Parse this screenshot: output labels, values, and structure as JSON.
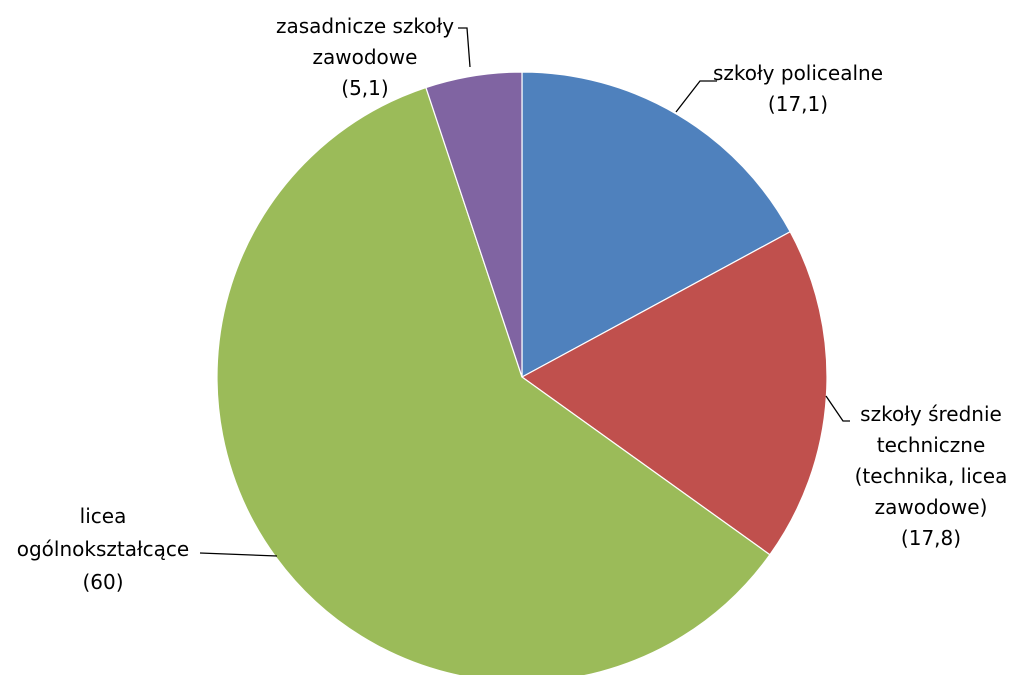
{
  "chart_data": {
    "type": "pie",
    "title": "",
    "legend": "none",
    "slices": [
      {
        "key": "policealne",
        "label_lines": [
          "szkoły policealne",
          "(17,1)"
        ],
        "value": 17.1,
        "color": "#4f81bd"
      },
      {
        "key": "srednie",
        "label_lines": [
          "szkoły średnie",
          "techniczne",
          "(technika, licea",
          "zawodowe)",
          "(17,8)"
        ],
        "value": 17.8,
        "color": "#c0504d"
      },
      {
        "key": "licea",
        "label_lines": [
          "licea",
          "ogólnokształcące",
          "(60)"
        ],
        "value": 60,
        "color": "#9bbb59"
      },
      {
        "key": "zasadnicze",
        "label_lines": [
          "zasadnicze szkoły",
          "zawodowe",
          "(5,1)"
        ],
        "value": 5.1,
        "color": "#8064a2"
      }
    ]
  }
}
